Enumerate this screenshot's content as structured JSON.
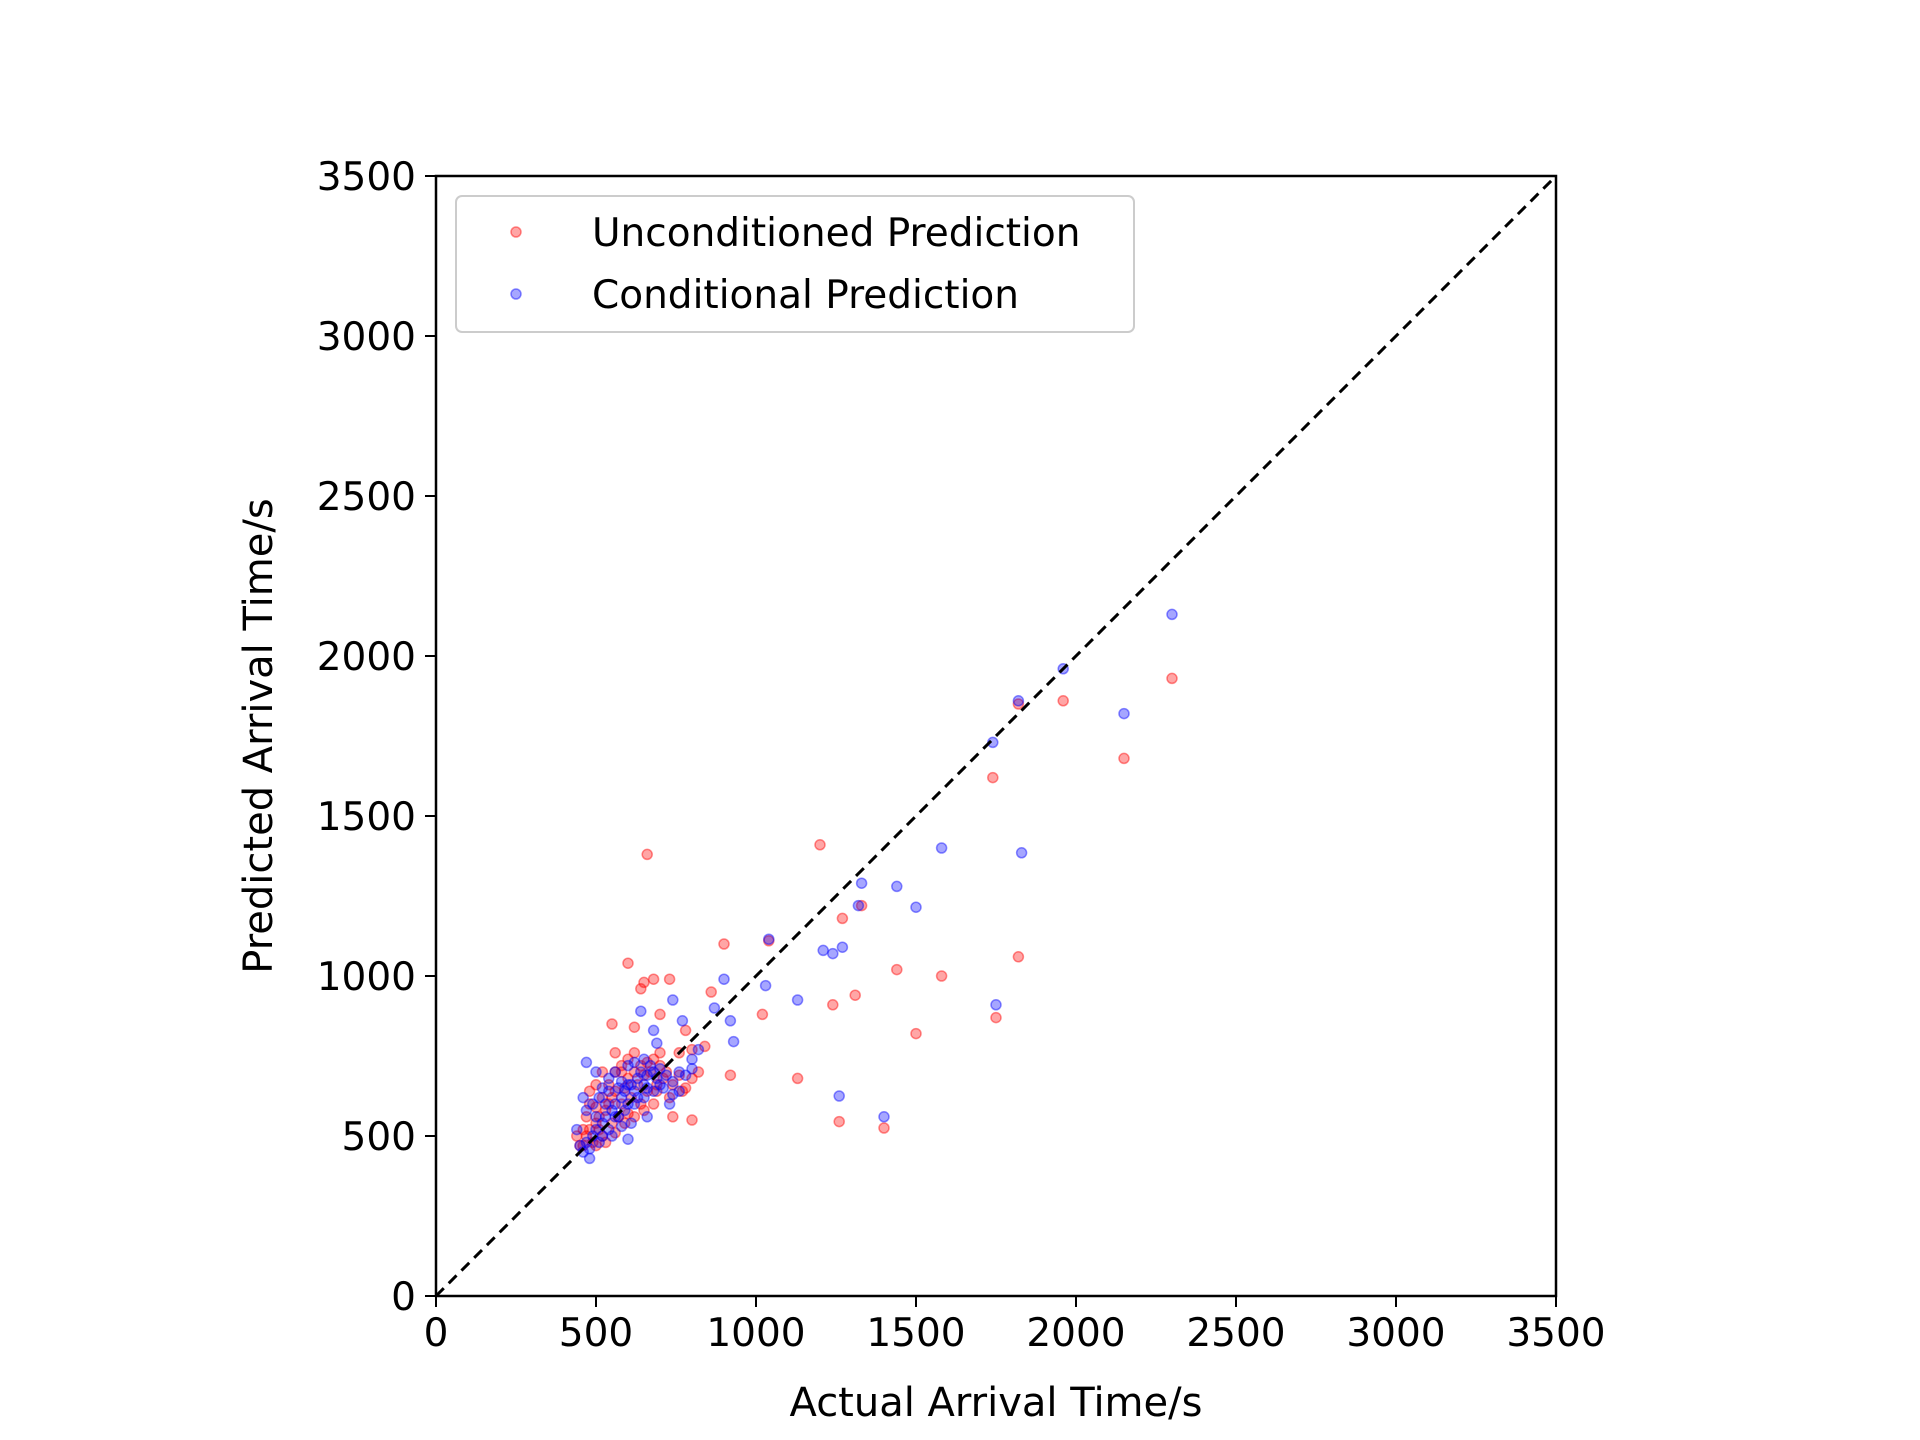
{
  "chart_data": {
    "type": "scatter",
    "title": "",
    "xlabel": "Actual Arrival Time/s",
    "ylabel": "Predicted Arrival Time/s",
    "xlim": [
      0,
      3500
    ],
    "ylim": [
      0,
      3500
    ],
    "xticks": [
      0,
      500,
      1000,
      1500,
      2000,
      2500,
      3000,
      3500
    ],
    "yticks": [
      0,
      500,
      1000,
      1500,
      2000,
      2500,
      3000,
      3500
    ],
    "grid": false,
    "legend_position": "top-left",
    "reference_line": {
      "from": [
        0,
        0
      ],
      "to": [
        3500,
        3500
      ],
      "style": "dashed",
      "color": "#000000"
    },
    "series": [
      {
        "name": "Unconditioned Prediction",
        "color": "#ff0000",
        "points": [
          [
            660,
            1380
          ],
          [
            1200,
            1410
          ],
          [
            600,
            1040
          ],
          [
            650,
            980
          ],
          [
            640,
            960
          ],
          [
            680,
            990
          ],
          [
            730,
            990
          ],
          [
            550,
            850
          ],
          [
            620,
            840
          ],
          [
            700,
            880
          ],
          [
            860,
            950
          ],
          [
            780,
            830
          ],
          [
            900,
            1100
          ],
          [
            1040,
            1110
          ],
          [
            1020,
            880
          ],
          [
            920,
            690
          ],
          [
            1130,
            680
          ],
          [
            1240,
            910
          ],
          [
            1270,
            1180
          ],
          [
            1310,
            940
          ],
          [
            1330,
            1220
          ],
          [
            1440,
            1020
          ],
          [
            1500,
            820
          ],
          [
            1580,
            1000
          ],
          [
            1750,
            870
          ],
          [
            1820,
            1060
          ],
          [
            1260,
            545
          ],
          [
            1400,
            525
          ],
          [
            1740,
            1620
          ],
          [
            1820,
            1850
          ],
          [
            1960,
            1860
          ],
          [
            2150,
            1680
          ],
          [
            2300,
            1930
          ],
          [
            460,
            470
          ],
          [
            470,
            500
          ],
          [
            480,
            520
          ],
          [
            490,
            480
          ],
          [
            500,
            540
          ],
          [
            510,
            560
          ],
          [
            520,
            500
          ],
          [
            530,
            580
          ],
          [
            540,
            600
          ],
          [
            550,
            620
          ],
          [
            560,
            640
          ],
          [
            570,
            560
          ],
          [
            580,
            600
          ],
          [
            590,
            650
          ],
          [
            600,
            680
          ],
          [
            610,
            620
          ],
          [
            620,
            700
          ],
          [
            630,
            660
          ],
          [
            640,
            720
          ],
          [
            650,
            690
          ],
          [
            660,
            640
          ],
          [
            670,
            700
          ],
          [
            680,
            740
          ],
          [
            690,
            660
          ],
          [
            700,
            720
          ],
          [
            710,
            680
          ],
          [
            720,
            700
          ],
          [
            740,
            660
          ],
          [
            760,
            690
          ],
          [
            780,
            650
          ],
          [
            800,
            680
          ],
          [
            820,
            700
          ],
          [
            500,
            590
          ],
          [
            520,
            620
          ],
          [
            540,
            660
          ],
          [
            560,
            700
          ],
          [
            580,
            720
          ],
          [
            600,
            740
          ],
          [
            470,
            560
          ],
          [
            480,
            600
          ],
          [
            450,
            470
          ],
          [
            440,
            500
          ],
          [
            500,
            470
          ],
          [
            530,
            480
          ],
          [
            560,
            510
          ],
          [
            590,
            540
          ],
          [
            620,
            560
          ],
          [
            650,
            580
          ],
          [
            680,
            600
          ],
          [
            740,
            560
          ],
          [
            800,
            550
          ],
          [
            460,
            520
          ],
          [
            510,
            520
          ],
          [
            550,
            540
          ],
          [
            600,
            570
          ],
          [
            640,
            600
          ],
          [
            690,
            640
          ],
          [
            730,
            620
          ],
          [
            770,
            640
          ],
          [
            760,
            760
          ],
          [
            800,
            770
          ],
          [
            840,
            780
          ],
          [
            560,
            760
          ],
          [
            580,
            700
          ],
          [
            620,
            760
          ],
          [
            660,
            730
          ],
          [
            700,
            760
          ],
          [
            480,
            640
          ],
          [
            500,
            660
          ],
          [
            520,
            700
          ]
        ]
      },
      {
        "name": "Conditional Prediction",
        "color": "#0000ff",
        "points": [
          [
            2300,
            2130
          ],
          [
            1960,
            1960
          ],
          [
            1820,
            1860
          ],
          [
            1740,
            1730
          ],
          [
            2150,
            1820
          ],
          [
            1830,
            1385
          ],
          [
            1580,
            1400
          ],
          [
            1440,
            1280
          ],
          [
            1500,
            1215
          ],
          [
            1330,
            1290
          ],
          [
            1320,
            1220
          ],
          [
            1210,
            1080
          ],
          [
            1240,
            1070
          ],
          [
            1270,
            1090
          ],
          [
            1040,
            1115
          ],
          [
            1030,
            970
          ],
          [
            1130,
            925
          ],
          [
            1750,
            910
          ],
          [
            1260,
            625
          ],
          [
            1400,
            560
          ],
          [
            900,
            990
          ],
          [
            870,
            900
          ],
          [
            920,
            860
          ],
          [
            930,
            795
          ],
          [
            740,
            925
          ],
          [
            770,
            860
          ],
          [
            640,
            890
          ],
          [
            680,
            830
          ],
          [
            690,
            790
          ],
          [
            820,
            770
          ],
          [
            800,
            740
          ],
          [
            460,
            450
          ],
          [
            470,
            480
          ],
          [
            480,
            460
          ],
          [
            490,
            500
          ],
          [
            500,
            520
          ],
          [
            510,
            480
          ],
          [
            520,
            540
          ],
          [
            530,
            560
          ],
          [
            540,
            520
          ],
          [
            550,
            580
          ],
          [
            560,
            600
          ],
          [
            570,
            560
          ],
          [
            580,
            620
          ],
          [
            590,
            640
          ],
          [
            600,
            600
          ],
          [
            610,
            660
          ],
          [
            620,
            640
          ],
          [
            630,
            680
          ],
          [
            640,
            700
          ],
          [
            650,
            660
          ],
          [
            660,
            690
          ],
          [
            670,
            720
          ],
          [
            680,
            700
          ],
          [
            690,
            680
          ],
          [
            700,
            710
          ],
          [
            720,
            690
          ],
          [
            740,
            670
          ],
          [
            760,
            700
          ],
          [
            780,
            690
          ],
          [
            800,
            710
          ],
          [
            470,
            730
          ],
          [
            500,
            700
          ],
          [
            520,
            650
          ],
          [
            540,
            680
          ],
          [
            560,
            700
          ],
          [
            580,
            670
          ],
          [
            600,
            720
          ],
          [
            620,
            730
          ],
          [
            650,
            740
          ],
          [
            480,
            430
          ],
          [
            450,
            470
          ],
          [
            440,
            520
          ],
          [
            500,
            560
          ],
          [
            530,
            600
          ],
          [
            560,
            560
          ],
          [
            590,
            580
          ],
          [
            620,
            600
          ],
          [
            650,
            620
          ],
          [
            680,
            640
          ],
          [
            710,
            650
          ],
          [
            740,
            630
          ],
          [
            660,
            560
          ],
          [
            600,
            490
          ],
          [
            520,
            500
          ],
          [
            470,
            580
          ],
          [
            460,
            620
          ],
          [
            490,
            600
          ],
          [
            510,
            620
          ],
          [
            540,
            640
          ],
          [
            570,
            650
          ],
          [
            600,
            660
          ],
          [
            630,
            620
          ],
          [
            660,
            650
          ],
          [
            700,
            660
          ],
          [
            730,
            600
          ],
          [
            760,
            640
          ],
          [
            610,
            540
          ],
          [
            580,
            530
          ],
          [
            550,
            500
          ]
        ]
      }
    ]
  }
}
